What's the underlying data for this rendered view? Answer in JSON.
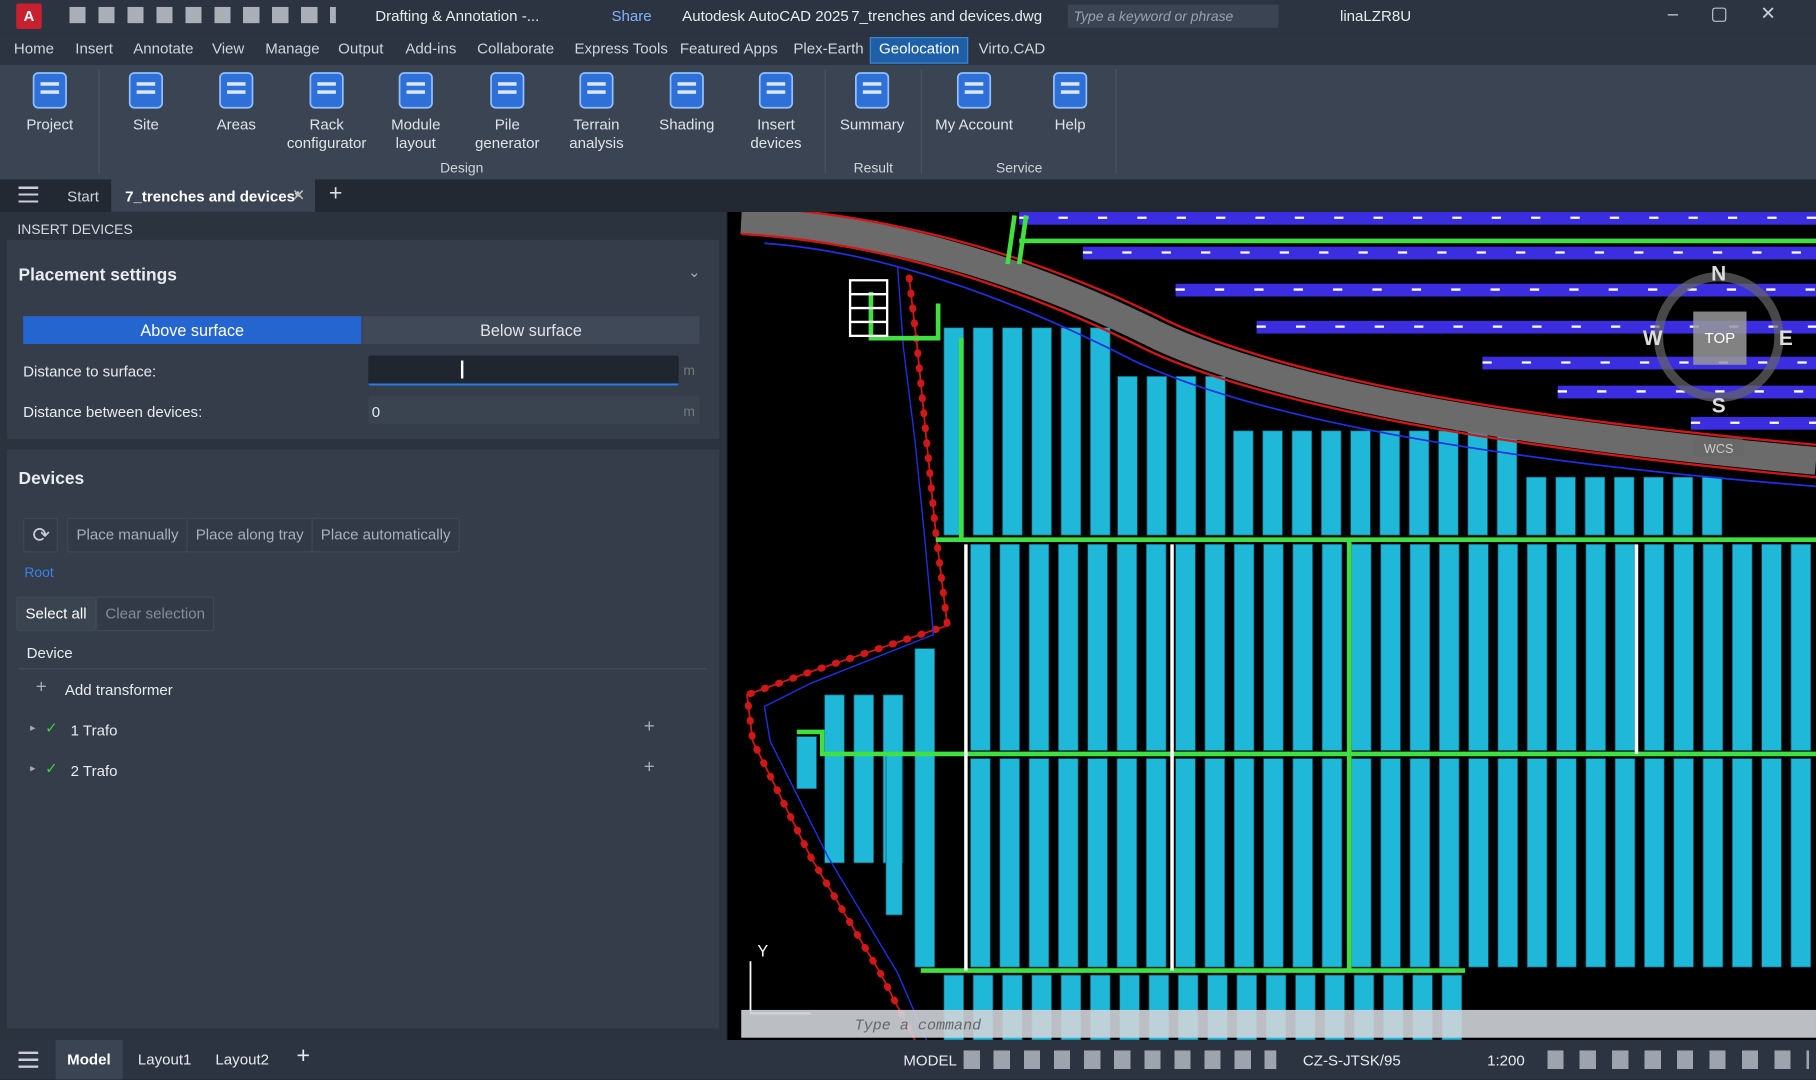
{
  "title_bar": {
    "workspace": "Drafting & Annotation -...",
    "share": "Share",
    "app_title": "Autodesk AutoCAD 2025",
    "file": "7_trenches and devices.dwg",
    "search_placeholder": "Type a keyword or phrase",
    "user": "linaLZR8U"
  },
  "menu_tabs": [
    "Home",
    "Insert",
    "Annotate",
    "View",
    "Manage",
    "Output",
    "Add-ins",
    "Collaborate",
    "Express Tools",
    "Featured Apps",
    "Plex-Earth",
    "Geolocation",
    "Virto.CAD"
  ],
  "ribbon": {
    "buttons": [
      "Project",
      "Site",
      "Areas",
      "Rack configurator",
      "Module layout",
      "Pile generator",
      "Terrain analysis",
      "Shading",
      "Insert devices",
      "Summary",
      "My Account",
      "Help"
    ],
    "groups": [
      "Design",
      "Result",
      "Service"
    ]
  },
  "doc_tabs": [
    "Start",
    "7_trenches and devices*"
  ],
  "panel": {
    "header": "INSERT DEVICES",
    "placement_title": "Placement settings",
    "above": "Above surface",
    "below": "Below surface",
    "distance_to_surface_label": "Distance to surface:",
    "distance_between_label": "Distance between devices:",
    "distance_between_value": "0",
    "unit": "m",
    "devices_title": "Devices",
    "place_manually": "Place manually",
    "place_along_tray": "Place along tray",
    "place_automatically": "Place automatically",
    "root": "Root",
    "select_all": "Select all",
    "clear_selection": "Clear selection",
    "device_col": "Device",
    "add_transformer": "Add transformer",
    "items": [
      "1 Trafo",
      "2 Trafo"
    ]
  },
  "viewport": {
    "cmd_placeholder": "Type a command",
    "compass": {
      "n": "N",
      "s": "S",
      "e": "E",
      "w": "W",
      "top": "TOP",
      "wcs": "WCS"
    },
    "axis_y": "Y"
  },
  "status": {
    "layout_tabs": [
      "Model",
      "Layout1",
      "Layout2"
    ],
    "model": "MODEL",
    "coord_system": "CZ-S-JTSK/95",
    "scale": "1:200"
  }
}
